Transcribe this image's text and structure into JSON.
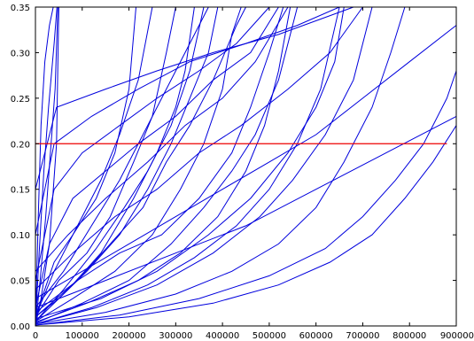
{
  "chart_data": {
    "type": "line",
    "title": "",
    "xlabel": "",
    "ylabel": "",
    "xlim": [
      0,
      900000
    ],
    "ylim": [
      0,
      0.35
    ],
    "x_ticks": [
      0,
      100000,
      200000,
      300000,
      400000,
      500000,
      600000,
      700000,
      800000,
      900000
    ],
    "y_ticks": [
      0.0,
      0.05,
      0.1,
      0.15,
      0.2,
      0.25,
      0.3,
      0.35
    ],
    "x_tick_labels": [
      "0",
      "100000",
      "200000",
      "300000",
      "400000",
      "500000",
      "600000",
      "700000",
      "800000",
      "900000"
    ],
    "y_tick_labels": [
      "0.00",
      "0.05",
      "0.10",
      "0.15",
      "0.20",
      "0.25",
      "0.30",
      "0.35"
    ],
    "grid": false,
    "legend": "none",
    "colors": {
      "series": "#0000dd",
      "threshold": "#ee0000",
      "axis": "#000000"
    },
    "threshold": {
      "y": 0.2,
      "x_range": [
        0,
        880000
      ]
    },
    "series": [
      {
        "points": [
          [
            0,
            0
          ],
          [
            6000,
            0.12
          ],
          [
            12000,
            0.22
          ],
          [
            20000,
            0.29
          ],
          [
            30000,
            0.33
          ],
          [
            38000,
            0.35
          ]
        ]
      },
      {
        "points": [
          [
            0,
            0
          ],
          [
            8000,
            0.08
          ],
          [
            18000,
            0.17
          ],
          [
            28000,
            0.24
          ],
          [
            40000,
            0.31
          ],
          [
            46000,
            0.35
          ]
        ]
      },
      {
        "points": [
          [
            0,
            0
          ],
          [
            10000,
            0.05
          ],
          [
            22000,
            0.12
          ],
          [
            32000,
            0.19
          ],
          [
            42000,
            0.26
          ],
          [
            48000,
            0.35
          ]
        ]
      },
      {
        "points": [
          [
            0,
            0
          ],
          [
            12000,
            0.03
          ],
          [
            30000,
            0.09
          ],
          [
            45000,
            0.2
          ],
          [
            50000,
            0.35
          ]
        ]
      },
      {
        "points": [
          [
            0,
            0.01
          ],
          [
            40000,
            0.07
          ],
          [
            80000,
            0.1
          ],
          [
            130000,
            0.14
          ],
          [
            170000,
            0.19
          ],
          [
            200000,
            0.26
          ],
          [
            215000,
            0.35
          ]
        ]
      },
      {
        "points": [
          [
            0,
            0.01
          ],
          [
            50000,
            0.05
          ],
          [
            110000,
            0.08
          ],
          [
            160000,
            0.12
          ],
          [
            210000,
            0.18
          ],
          [
            250000,
            0.23
          ],
          [
            280000,
            0.3
          ],
          [
            300000,
            0.35
          ]
        ]
      },
      {
        "points": [
          [
            0,
            0.02
          ],
          [
            60000,
            0.06
          ],
          [
            120000,
            0.11
          ],
          [
            180000,
            0.16
          ],
          [
            230000,
            0.21
          ],
          [
            270000,
            0.25
          ],
          [
            330000,
            0.31
          ],
          [
            370000,
            0.35
          ]
        ]
      },
      {
        "points": [
          [
            0,
            0.005
          ],
          [
            70000,
            0.04
          ],
          [
            140000,
            0.08
          ],
          [
            210000,
            0.14
          ],
          [
            260000,
            0.19
          ],
          [
            300000,
            0.24
          ],
          [
            320000,
            0.28
          ],
          [
            340000,
            0.35
          ]
        ]
      },
      {
        "points": [
          [
            0,
            0.01
          ],
          [
            90000,
            0.05
          ],
          [
            160000,
            0.09
          ],
          [
            230000,
            0.13
          ],
          [
            280000,
            0.18
          ],
          [
            330000,
            0.22
          ],
          [
            380000,
            0.27
          ],
          [
            430000,
            0.33
          ],
          [
            450000,
            0.35
          ]
        ]
      },
      {
        "points": [
          [
            0,
            0.005
          ],
          [
            80000,
            0.03
          ],
          [
            170000,
            0.06
          ],
          [
            250000,
            0.1
          ],
          [
            310000,
            0.15
          ],
          [
            360000,
            0.2
          ],
          [
            400000,
            0.26
          ],
          [
            420000,
            0.32
          ],
          [
            440000,
            0.35
          ]
        ]
      },
      {
        "points": [
          [
            0,
            0.003
          ],
          [
            100000,
            0.025
          ],
          [
            200000,
            0.05
          ],
          [
            290000,
            0.09
          ],
          [
            360000,
            0.13
          ],
          [
            420000,
            0.17
          ],
          [
            470000,
            0.21
          ],
          [
            520000,
            0.27
          ],
          [
            560000,
            0.35
          ]
        ]
      },
      {
        "points": [
          [
            0,
            0.002
          ],
          [
            120000,
            0.02
          ],
          [
            240000,
            0.045
          ],
          [
            340000,
            0.075
          ],
          [
            430000,
            0.11
          ],
          [
            500000,
            0.15
          ],
          [
            560000,
            0.2
          ],
          [
            610000,
            0.26
          ],
          [
            650000,
            0.35
          ]
        ]
      },
      {
        "points": [
          [
            0,
            0.002
          ],
          [
            150000,
            0.015
          ],
          [
            300000,
            0.035
          ],
          [
            420000,
            0.06
          ],
          [
            520000,
            0.09
          ],
          [
            600000,
            0.13
          ],
          [
            660000,
            0.18
          ],
          [
            720000,
            0.24
          ],
          [
            760000,
            0.3
          ],
          [
            790000,
            0.35
          ]
        ]
      },
      {
        "points": [
          [
            0,
            0.001
          ],
          [
            200000,
            0.01
          ],
          [
            380000,
            0.025
          ],
          [
            520000,
            0.045
          ],
          [
            630000,
            0.07
          ],
          [
            720000,
            0.1
          ],
          [
            790000,
            0.14
          ],
          [
            850000,
            0.18
          ],
          [
            900000,
            0.22
          ]
        ]
      },
      {
        "points": [
          [
            0,
            0.001
          ],
          [
            180000,
            0.012
          ],
          [
            350000,
            0.03
          ],
          [
            500000,
            0.055
          ],
          [
            620000,
            0.085
          ],
          [
            700000,
            0.12
          ],
          [
            770000,
            0.16
          ],
          [
            830000,
            0.2
          ],
          [
            880000,
            0.25
          ],
          [
            900000,
            0.28
          ]
        ]
      },
      {
        "points": [
          [
            0,
            0.002
          ],
          [
            130000,
            0.02
          ],
          [
            260000,
            0.045
          ],
          [
            380000,
            0.08
          ],
          [
            480000,
            0.12
          ],
          [
            550000,
            0.16
          ],
          [
            620000,
            0.21
          ],
          [
            680000,
            0.27
          ],
          [
            720000,
            0.35
          ]
        ]
      },
      {
        "points": [
          [
            0,
            0.005
          ],
          [
            60000,
            0.04
          ],
          [
            130000,
            0.085
          ],
          [
            190000,
            0.13
          ],
          [
            240000,
            0.17
          ],
          [
            290000,
            0.22
          ],
          [
            330000,
            0.28
          ],
          [
            360000,
            0.35
          ]
        ]
      },
      {
        "points": [
          [
            0,
            0.01
          ],
          [
            40000,
            0.06
          ],
          [
            90000,
            0.11
          ],
          [
            140000,
            0.16
          ],
          [
            180000,
            0.21
          ],
          [
            220000,
            0.27
          ],
          [
            250000,
            0.35
          ]
        ]
      },
      {
        "points": [
          [
            0,
            0.02
          ],
          [
            30000,
            0.09
          ],
          [
            80000,
            0.14
          ],
          [
            150000,
            0.17
          ],
          [
            220000,
            0.2
          ],
          [
            300000,
            0.23
          ],
          [
            380000,
            0.27
          ],
          [
            460000,
            0.3
          ],
          [
            520000,
            0.35
          ]
        ]
      },
      {
        "points": [
          [
            0,
            0.05
          ],
          [
            40000,
            0.15
          ],
          [
            100000,
            0.19
          ],
          [
            180000,
            0.22
          ],
          [
            260000,
            0.25
          ],
          [
            350000,
            0.28
          ],
          [
            430000,
            0.31
          ],
          [
            500000,
            0.35
          ]
        ]
      },
      {
        "points": [
          [
            0,
            0.1
          ],
          [
            40000,
            0.2
          ],
          [
            120000,
            0.23
          ],
          [
            220000,
            0.26
          ],
          [
            330000,
            0.29
          ],
          [
            450000,
            0.31
          ],
          [
            560000,
            0.33
          ],
          [
            650000,
            0.35
          ]
        ]
      },
      {
        "points": [
          [
            0,
            0.15
          ],
          [
            45000,
            0.24
          ],
          [
            150000,
            0.26
          ],
          [
            260000,
            0.28
          ],
          [
            380000,
            0.3
          ],
          [
            520000,
            0.32
          ],
          [
            680000,
            0.35
          ]
        ]
      },
      {
        "points": [
          [
            0,
            0.03
          ],
          [
            100000,
            0.06
          ],
          [
            200000,
            0.09
          ],
          [
            300000,
            0.12
          ],
          [
            400000,
            0.15
          ],
          [
            500000,
            0.18
          ],
          [
            600000,
            0.21
          ],
          [
            700000,
            0.25
          ],
          [
            800000,
            0.29
          ],
          [
            900000,
            0.33
          ]
        ]
      },
      {
        "points": [
          [
            0,
            0.02
          ],
          [
            150000,
            0.05
          ],
          [
            300000,
            0.08
          ],
          [
            450000,
            0.11
          ],
          [
            600000,
            0.15
          ],
          [
            750000,
            0.19
          ],
          [
            900000,
            0.23
          ]
        ]
      },
      {
        "points": [
          [
            0,
            0.04
          ],
          [
            80000,
            0.08
          ],
          [
            170000,
            0.12
          ],
          [
            260000,
            0.15
          ],
          [
            350000,
            0.19
          ],
          [
            440000,
            0.22
          ],
          [
            540000,
            0.26
          ],
          [
            630000,
            0.3
          ],
          [
            700000,
            0.35
          ]
        ]
      },
      {
        "points": [
          [
            0,
            0.06
          ],
          [
            70000,
            0.1
          ],
          [
            150000,
            0.14
          ],
          [
            240000,
            0.18
          ],
          [
            320000,
            0.22
          ],
          [
            400000,
            0.25
          ],
          [
            470000,
            0.29
          ],
          [
            540000,
            0.35
          ]
        ]
      },
      {
        "points": [
          [
            0,
            0.01
          ],
          [
            50000,
            0.03
          ],
          [
            110000,
            0.06
          ],
          [
            180000,
            0.1
          ],
          [
            240000,
            0.15
          ],
          [
            290000,
            0.2
          ],
          [
            330000,
            0.25
          ],
          [
            370000,
            0.3
          ],
          [
            390000,
            0.35
          ]
        ]
      },
      {
        "points": [
          [
            0,
            0.015
          ],
          [
            90000,
            0.05
          ],
          [
            180000,
            0.08
          ],
          [
            270000,
            0.1
          ],
          [
            350000,
            0.14
          ],
          [
            420000,
            0.19
          ],
          [
            460000,
            0.24
          ],
          [
            500000,
            0.3
          ],
          [
            530000,
            0.35
          ]
        ]
      },
      {
        "points": [
          [
            0,
            0.008
          ],
          [
            140000,
            0.03
          ],
          [
            260000,
            0.06
          ],
          [
            370000,
            0.1
          ],
          [
            460000,
            0.14
          ],
          [
            540000,
            0.19
          ],
          [
            600000,
            0.24
          ],
          [
            640000,
            0.29
          ],
          [
            660000,
            0.35
          ]
        ]
      },
      {
        "points": [
          [
            0,
            0.004
          ],
          [
            110000,
            0.025
          ],
          [
            220000,
            0.05
          ],
          [
            310000,
            0.08
          ],
          [
            390000,
            0.12
          ],
          [
            450000,
            0.17
          ],
          [
            490000,
            0.22
          ],
          [
            520000,
            0.28
          ],
          [
            545000,
            0.35
          ]
        ]
      }
    ]
  }
}
